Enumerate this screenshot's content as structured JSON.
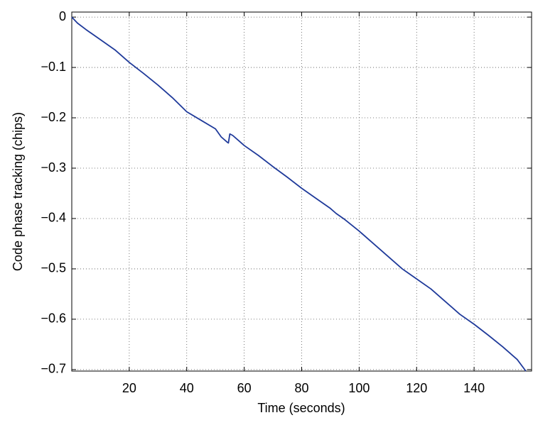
{
  "chart_data": {
    "type": "line",
    "xlabel": "Time (seconds)",
    "ylabel": "Code phase tracking (chips)",
    "color": "#1f3a9a",
    "x": [
      0,
      2,
      5,
      10,
      15,
      20,
      25,
      30,
      35,
      40,
      45,
      50,
      52,
      54,
      54.5,
      55,
      56,
      58,
      60,
      65,
      70,
      75,
      80,
      85,
      90,
      92,
      95,
      100,
      105,
      110,
      115,
      120,
      125,
      130,
      135,
      140,
      145,
      150,
      155,
      158
    ],
    "values": [
      0,
      -0.012,
      -0.025,
      -0.045,
      -0.065,
      -0.09,
      -0.112,
      -0.135,
      -0.16,
      -0.188,
      -0.205,
      -0.222,
      -0.238,
      -0.248,
      -0.25,
      -0.232,
      -0.235,
      -0.245,
      -0.255,
      -0.275,
      -0.297,
      -0.318,
      -0.34,
      -0.36,
      -0.38,
      -0.39,
      -0.402,
      -0.425,
      -0.45,
      -0.475,
      -0.5,
      -0.52,
      -0.54,
      -0.565,
      -0.59,
      -0.61,
      -0.632,
      -0.655,
      -0.68,
      -0.703
    ],
    "xlim": [
      0,
      160
    ],
    "ylim": [
      -0.703,
      0.01
    ],
    "xticks": [
      20,
      40,
      60,
      80,
      100,
      120,
      140
    ],
    "yticks": [
      0,
      {
        "value": -0.1,
        "label": "−0.1"
      },
      {
        "value": -0.2,
        "label": "−0.2"
      },
      {
        "value": -0.3,
        "label": "−0.3"
      },
      {
        "value": -0.4,
        "label": "−0.4"
      },
      {
        "value": -0.5,
        "label": "−0.5"
      },
      {
        "value": -0.6,
        "label": "−0.6"
      },
      {
        "value": -0.7,
        "label": "−0.7"
      }
    ],
    "grid": true
  }
}
